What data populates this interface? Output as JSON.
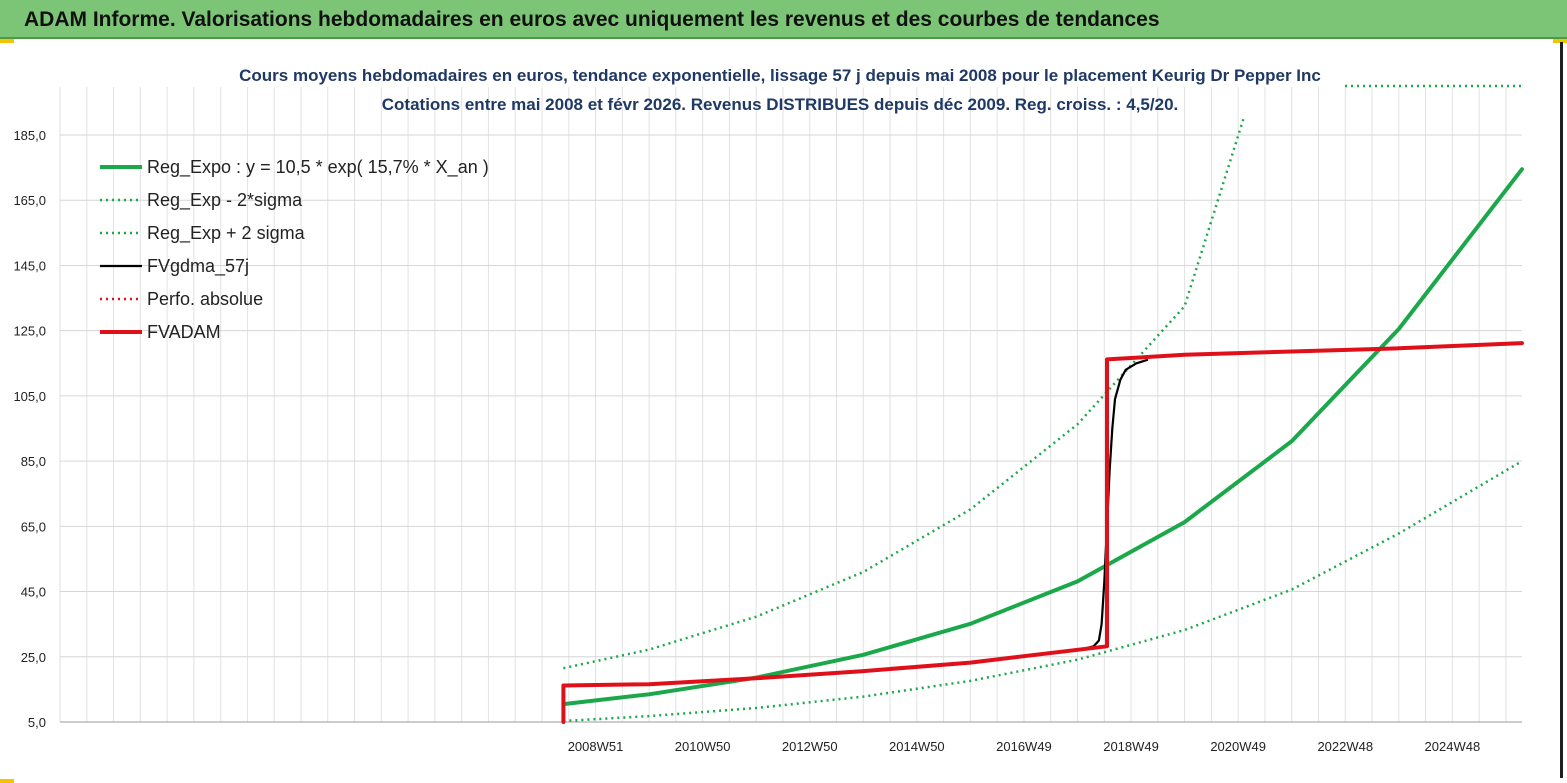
{
  "header": {
    "title": "ADAM Informe. Valorisations hebdomadaires en euros avec uniquement les revenus et des courbes de tendances"
  },
  "chart_data": {
    "type": "line",
    "title": "Cours moyens hebdomadaires en euros, tendance exponentielle, lissage 57 j depuis mai 2008 pour le placement Keurig Dr Pepper Inc",
    "subtitle": "Cotations entre mai 2008 et févr 2026. Revenus DISTRIBUES depuis déc 2009. Reg. croiss. : 4,5/20.",
    "xlabel": "",
    "ylabel": "",
    "x_range": [
      1999.0,
      2026.3
    ],
    "ylim": [
      5,
      195
    ],
    "y_ticks": [
      5,
      25,
      45,
      65,
      85,
      105,
      125,
      145,
      165,
      185
    ],
    "y_tick_labels": [
      "5,0",
      "25,0",
      "45,0",
      "65,0",
      "85,0",
      "105,0",
      "125,0",
      "145,0",
      "165,0",
      "185,0"
    ],
    "x_tick_labels": [
      "2008W51",
      "2010W50",
      "2012W50",
      "2014W50",
      "2016W49",
      "2018W49",
      "2020W49",
      "2022W48",
      "2024W48"
    ],
    "x_tick_positions": [
      2009.0,
      2011.0,
      2013.0,
      2015.0,
      2017.0,
      2019.0,
      2021.0,
      2023.0,
      2025.0
    ],
    "grid": true,
    "legend_position": "top-left",
    "series": [
      {
        "name": "Reg_Expo : y = 10,5 * exp( 15,7% *  X_an )",
        "color": "#1aa84a",
        "style": "solid-thick",
        "x": [
          2008.4,
          2010,
          2012,
          2014,
          2016,
          2018,
          2020,
          2022,
          2024,
          2026.3
        ],
        "y": [
          10.5,
          13.5,
          18.6,
          25.6,
          35.1,
          48.1,
          66.3,
          91.1,
          125.5,
          174.5
        ]
      },
      {
        "name": "Reg_Exp - 2*sigma",
        "color": "#1aa84a",
        "style": "dotted",
        "x": [
          2008.4,
          2010,
          2012,
          2014,
          2016,
          2018,
          2020,
          2022,
          2024,
          2026.3
        ],
        "y": [
          5.3,
          6.8,
          9.3,
          12.8,
          17.6,
          24.1,
          33.2,
          45.6,
          62.8,
          85.0
        ]
      },
      {
        "name": "Reg_Exp + 2 sigma",
        "color": "#1aa84a",
        "style": "dotted",
        "x": [
          2008.4,
          2010,
          2012,
          2014,
          2016,
          2018,
          2020,
          2021.1
        ],
        "y": [
          21.5,
          27.2,
          37.3,
          51.0,
          70.2,
          96.3,
          132.5,
          190.0
        ]
      },
      {
        "name": "FVgdma_57j",
        "color": "#000000",
        "style": "solid",
        "x": [
          2017.9,
          2018.1,
          2018.3,
          2018.4,
          2018.45,
          2018.5,
          2018.55,
          2018.6,
          2018.65,
          2018.7,
          2018.8,
          2018.9,
          2019.1,
          2019.3
        ],
        "y": [
          26.8,
          27.4,
          28.2,
          30.0,
          35.0,
          48.0,
          65.0,
          82.0,
          95.0,
          104.0,
          110.0,
          113.0,
          115.0,
          116.0
        ]
      },
      {
        "name": "Perfo. absolue",
        "color": "#e0101a",
        "style": "dotted",
        "x": [],
        "y": []
      },
      {
        "name": "FVADAM",
        "color": "#e0101a",
        "style": "solid-thick",
        "x": [
          2008.4,
          2008.4,
          2010,
          2012,
          2014,
          2016,
          2018.55,
          2018.55,
          2020,
          2022,
          2024,
          2026.3
        ],
        "y": [
          5.0,
          16.2,
          16.6,
          18.4,
          20.6,
          23.2,
          28.2,
          116.2,
          117.6,
          118.6,
          119.6,
          121.2
        ]
      }
    ]
  }
}
